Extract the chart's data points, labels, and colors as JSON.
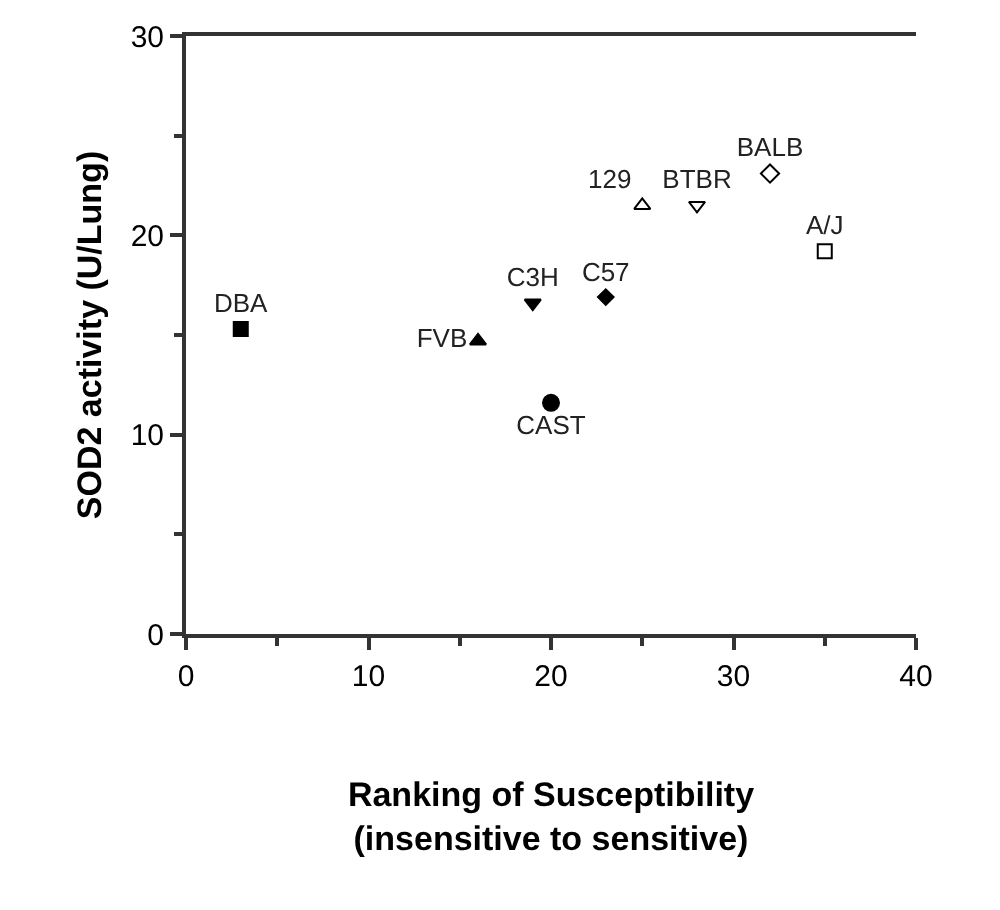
{
  "chart_data": {
    "type": "scatter",
    "xlabel": "Ranking of Susceptibility\n(insensitive to sensitive)",
    "ylabel": "SOD2 activity (U/Lung)",
    "xlim": [
      0,
      40
    ],
    "xticks": [
      0,
      10,
      20,
      30,
      40
    ],
    "ylim": [
      0,
      30
    ],
    "yticks": [
      0,
      10,
      20,
      30
    ],
    "grid": false,
    "series": [
      {
        "name": "DBA",
        "color": "#000000",
        "marker": "square",
        "x": [
          3
        ],
        "values": [
          15.3
        ]
      },
      {
        "name": "FVB",
        "color": "#000000",
        "marker": "triangle",
        "x": [
          16
        ],
        "values": [
          14.7
        ]
      },
      {
        "name": "C3H",
        "color": "#000000",
        "marker": "triangle-down",
        "x": [
          19
        ],
        "values": [
          16.6
        ]
      },
      {
        "name": "CAST",
        "color": "#000000",
        "marker": "circle",
        "x": [
          20
        ],
        "values": [
          11.6
        ]
      },
      {
        "name": "C57",
        "color": "#000000",
        "marker": "diamond",
        "x": [
          23
        ],
        "values": [
          16.9
        ]
      },
      {
        "name": "129",
        "color": "#000000",
        "marker": "triangle-open",
        "x": [
          25
        ],
        "values": [
          21.5
        ]
      },
      {
        "name": "BTBR",
        "color": "#000000",
        "marker": "triangle-down-open",
        "x": [
          28
        ],
        "values": [
          21.5
        ]
      },
      {
        "name": "BALB",
        "color": "#000000",
        "marker": "diamond-open",
        "x": [
          32
        ],
        "values": [
          23.1
        ]
      },
      {
        "name": "A/J",
        "color": "#000000",
        "marker": "square-open",
        "x": [
          35
        ],
        "values": [
          19.2
        ]
      }
    ]
  }
}
